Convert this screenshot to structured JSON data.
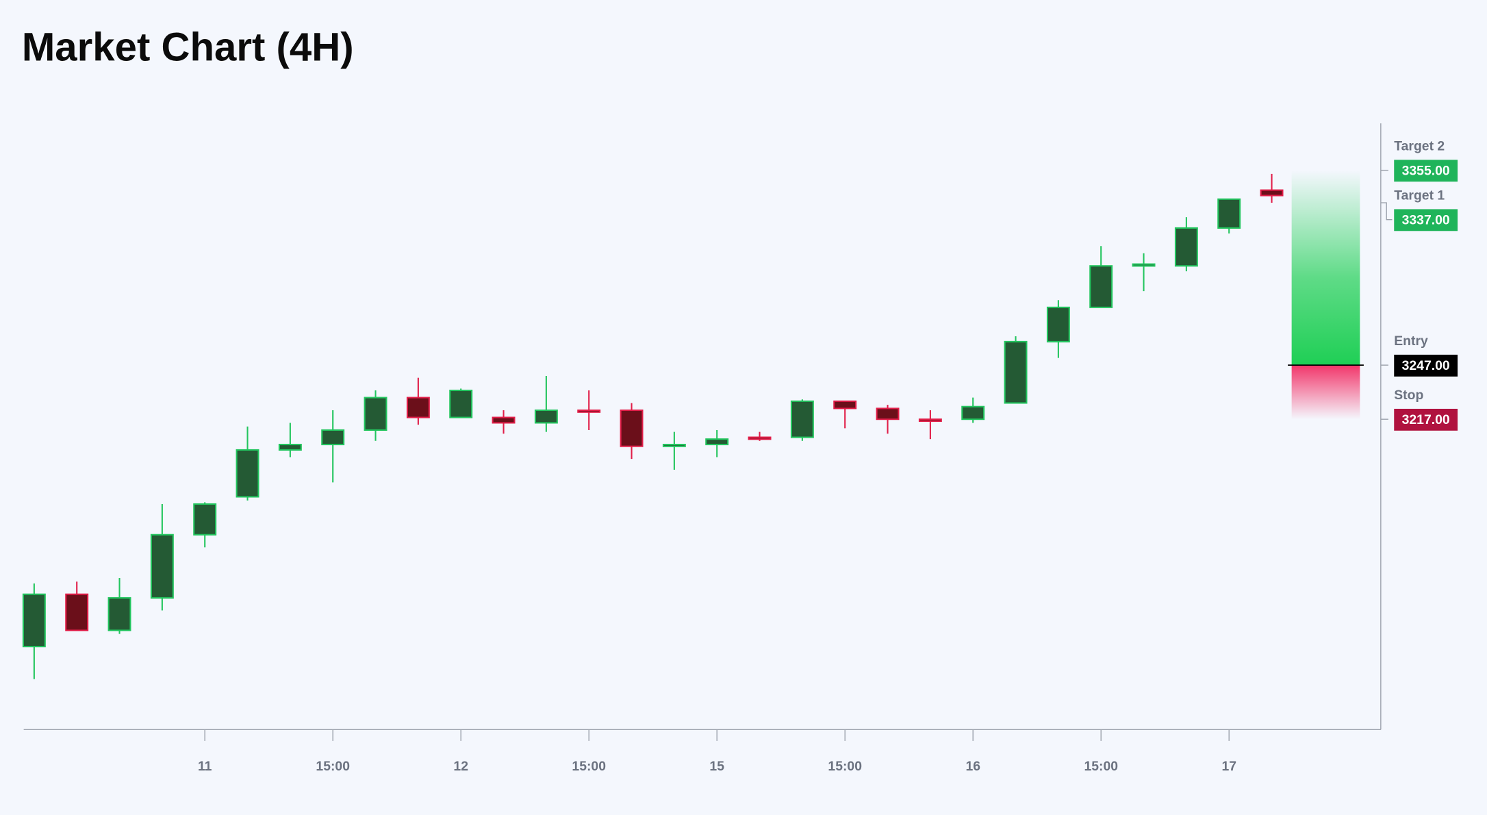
{
  "chart_data": {
    "type": "candlestick",
    "title": "Market Chart (4H)",
    "categories": [
      null,
      null,
      null,
      null,
      "11",
      null,
      null,
      "15:00",
      null,
      null,
      "12",
      null,
      null,
      "15:00",
      null,
      null,
      "15",
      null,
      null,
      "15:00",
      null,
      null,
      "16",
      null,
      null,
      "15:00",
      null,
      null,
      "17",
      null
    ],
    "open": [
      3091,
      3120,
      3100,
      3118,
      3153,
      3174,
      3200,
      3203,
      3211,
      3229,
      3218,
      3218,
      3215,
      3222,
      3222,
      3202,
      3203,
      3207,
      3207,
      3227,
      3223,
      3217,
      3217,
      3226,
      3260,
      3279,
      3302,
      3302,
      3323,
      3344
    ],
    "high": [
      3126,
      3127,
      3129,
      3170,
      3171,
      3213,
      3215,
      3222,
      3233,
      3240,
      3234,
      3222,
      3241,
      3233,
      3226,
      3210,
      3211,
      3210,
      3228,
      3227,
      3225,
      3222,
      3229,
      3263,
      3283,
      3313,
      3309,
      3329,
      3339,
      3353
    ],
    "low": [
      3073,
      3100,
      3098,
      3111,
      3146,
      3172,
      3196,
      3182,
      3205,
      3214,
      3218,
      3209,
      3210,
      3211,
      3195,
      3189,
      3196,
      3205,
      3205,
      3212,
      3209,
      3206,
      3215,
      3226,
      3251,
      3279,
      3288,
      3299,
      3320,
      3337
    ],
    "close": [
      3120,
      3100,
      3118,
      3153,
      3170,
      3200,
      3203,
      3211,
      3229,
      3218,
      3233,
      3215,
      3222,
      3221,
      3202,
      3203,
      3206,
      3206,
      3227,
      3223,
      3217,
      3216,
      3224,
      3260,
      3279,
      3302,
      3303,
      3323,
      3339,
      3341
    ],
    "up_color": "#22c55e",
    "up_fill": "#245a34",
    "down_color": "#e11d48",
    "down_fill": "#6b0f1a",
    "ylim": [
      3045,
      3381
    ],
    "levels": [
      {
        "name": "Target 2",
        "value": 3355,
        "value_label": "3355.00",
        "color": "#1fb45a"
      },
      {
        "name": "Target 1",
        "value": 3337,
        "value_label": "3337.00",
        "color": "#1fb45a"
      },
      {
        "name": "Entry",
        "value": 3247,
        "value_label": "3247.00",
        "color": "#000000"
      },
      {
        "name": "Stop",
        "value": 3217,
        "value_label": "3217.00",
        "color": "#b0123f"
      }
    ]
  }
}
